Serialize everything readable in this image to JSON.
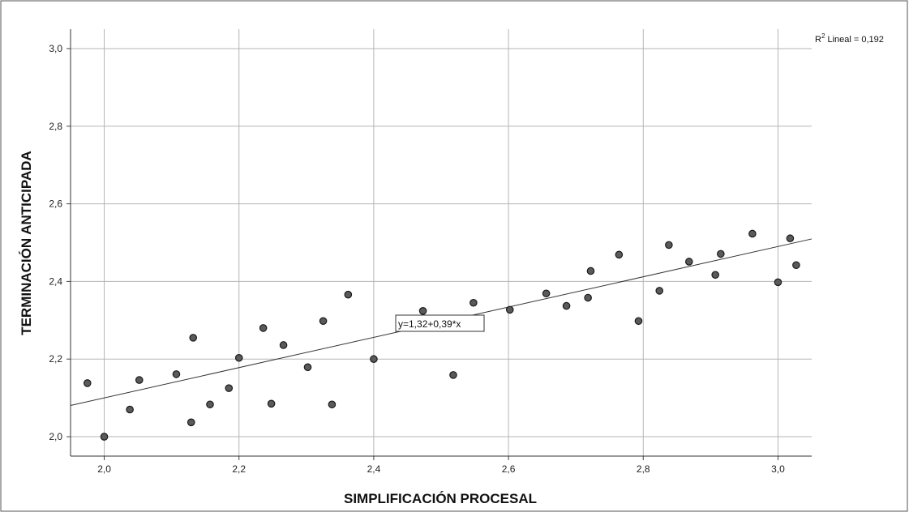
{
  "chart_data": {
    "type": "scatter",
    "xlabel": "SIMPLIFICACIÓN PROCESAL",
    "ylabel": "TERMINACIÓN ANTICIPADA",
    "xlim": [
      1.95,
      3.05
    ],
    "ylim": [
      1.95,
      3.05
    ],
    "x_ticks": [
      2.0,
      2.2,
      2.4,
      2.6,
      2.8,
      3.0
    ],
    "y_ticks": [
      2.0,
      2.2,
      2.4,
      2.6,
      2.8,
      3.0
    ],
    "x_tick_labels": [
      "2,0",
      "2,2",
      "2,4",
      "2,6",
      "2,8",
      "3,0"
    ],
    "y_tick_labels": [
      "2,0",
      "2,2",
      "2,4",
      "2,6",
      "2,8",
      "3,0"
    ],
    "grid": true,
    "r2_prefix": "R",
    "r2_superscript": "2",
    "r2_text": " Lineal = 0,192",
    "fit_equation": "y=1,32+0,39*x",
    "fit": {
      "intercept": 1.32,
      "slope": 0.39
    },
    "marker_color": "#5a5a5a",
    "points": [
      {
        "x": 1.975,
        "y": 2.138
      },
      {
        "x": 2.0,
        "y": 2.0
      },
      {
        "x": 2.038,
        "y": 2.07
      },
      {
        "x": 2.052,
        "y": 2.146
      },
      {
        "x": 2.107,
        "y": 2.161
      },
      {
        "x": 2.129,
        "y": 2.037
      },
      {
        "x": 2.132,
        "y": 2.255
      },
      {
        "x": 2.157,
        "y": 2.083
      },
      {
        "x": 2.185,
        "y": 2.125
      },
      {
        "x": 2.2,
        "y": 2.203
      },
      {
        "x": 2.236,
        "y": 2.28
      },
      {
        "x": 2.248,
        "y": 2.085
      },
      {
        "x": 2.266,
        "y": 2.236
      },
      {
        "x": 2.302,
        "y": 2.179
      },
      {
        "x": 2.325,
        "y": 2.298
      },
      {
        "x": 2.338,
        "y": 2.083
      },
      {
        "x": 2.362,
        "y": 2.366
      },
      {
        "x": 2.4,
        "y": 2.2
      },
      {
        "x": 2.473,
        "y": 2.324
      },
      {
        "x": 2.518,
        "y": 2.159
      },
      {
        "x": 2.548,
        "y": 2.345
      },
      {
        "x": 2.602,
        "y": 2.327
      },
      {
        "x": 2.656,
        "y": 2.369
      },
      {
        "x": 2.686,
        "y": 2.337
      },
      {
        "x": 2.718,
        "y": 2.358
      },
      {
        "x": 2.722,
        "y": 2.427
      },
      {
        "x": 2.764,
        "y": 2.469
      },
      {
        "x": 2.793,
        "y": 2.298
      },
      {
        "x": 2.824,
        "y": 2.376
      },
      {
        "x": 2.838,
        "y": 2.494
      },
      {
        "x": 2.868,
        "y": 2.451
      },
      {
        "x": 2.907,
        "y": 2.417
      },
      {
        "x": 2.915,
        "y": 2.471
      },
      {
        "x": 2.962,
        "y": 2.523
      },
      {
        "x": 3.0,
        "y": 2.398
      },
      {
        "x": 3.018,
        "y": 2.511
      },
      {
        "x": 3.027,
        "y": 2.442
      }
    ]
  }
}
